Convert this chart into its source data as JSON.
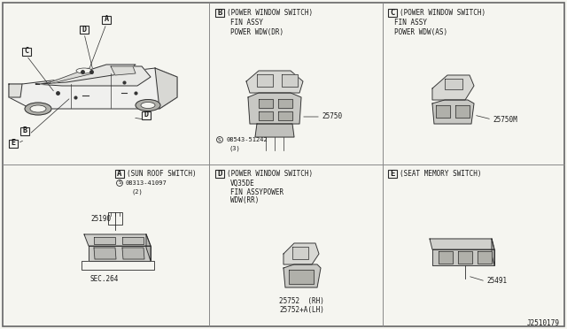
{
  "background_color": "#f5f5f0",
  "line_color": "#2a2a2a",
  "text_color": "#1a1a1a",
  "border_color": "#555555",
  "diagram_id": "J2510179",
  "figsize": [
    6.4,
    3.72
  ],
  "dpi": 100,
  "sections": {
    "B_title": "(POWER WINDOW SWITCH)",
    "B_sub1": "FIN ASSY",
    "B_sub2": "POWER WDW(DR)",
    "B_part": "25750",
    "B_screw": "08543-51242",
    "B_screw_sub": "(3)",
    "C_title": "(POWER WINDOW SWITCH)",
    "C_sub1": "FIN ASSY",
    "C_sub2": "POWER WDW(AS)",
    "C_part": "25750M",
    "A_title": "(SUN ROOF SWITCH)",
    "A_screw": "08313-41097",
    "A_screw_sub": "(2)",
    "A_part": "25190",
    "A_sec": "SEC.264",
    "D_title": "(POWER WINDOW SWITCH)",
    "D_sub1": "VQ35DE",
    "D_sub2": "FIN ASSYPOWER",
    "D_sub3": "WDW(RR)",
    "D_part1": "25752  (RH)",
    "D_part2": "25752+A(LH)",
    "E_title": "(SEAT MEMORY SWITCH)",
    "E_part": "25491"
  }
}
